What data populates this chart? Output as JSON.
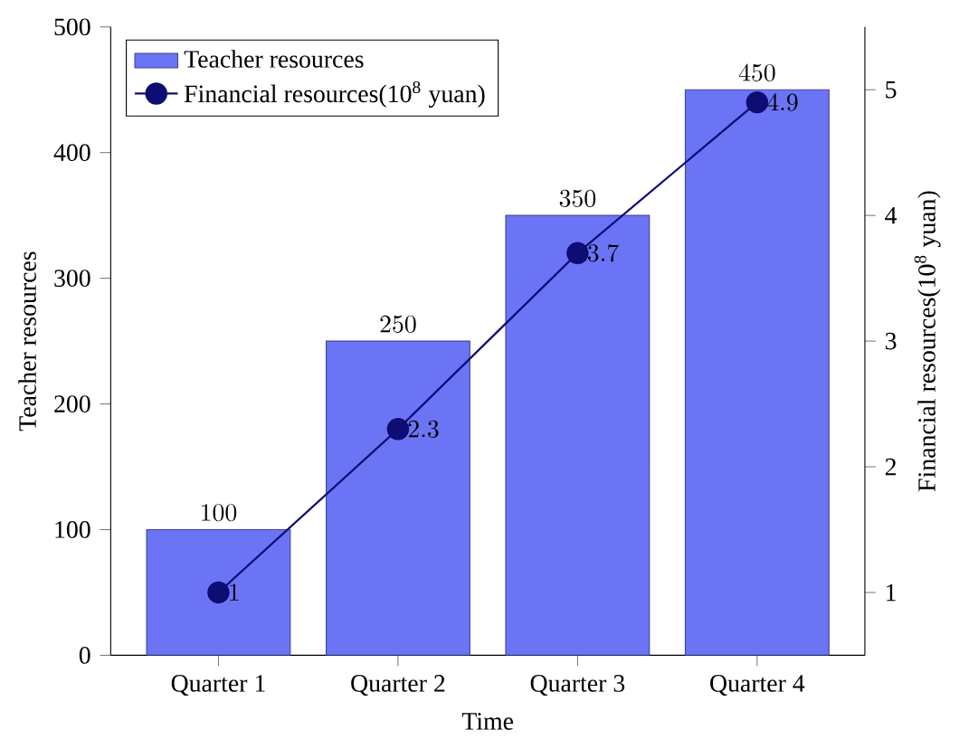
{
  "chart_data": {
    "type": "bar",
    "xlabel": "Time",
    "ylabel": "Teacher resources",
    "y2label": "Financial resources(10$^{8}$ yuan)",
    "categories": [
      "Quarter 1",
      "Quarter 2",
      "Quarter 3",
      "Quarter 4"
    ],
    "series": [
      {
        "name": "Teacher resources",
        "color": "#6b74f5",
        "values": [
          100,
          250,
          350,
          450
        ]
      },
      {
        "name": "Financial resources(10$^{8}$ yuan)",
        "type": "line",
        "axis": "y2",
        "color": "#0d0d73",
        "values": [
          1,
          2.3,
          3.7,
          4.9
        ]
      }
    ],
    "ylim": [
      0,
      500
    ],
    "yticks": [
      0,
      100,
      200,
      300,
      400,
      500
    ],
    "y2lim": [
      0.5,
      5.5
    ],
    "y2ticks": [
      1,
      2,
      3,
      4,
      5
    ],
    "legend": "top left",
    "marker": "circle",
    "line_style": "solid",
    "data_labels": true
  }
}
